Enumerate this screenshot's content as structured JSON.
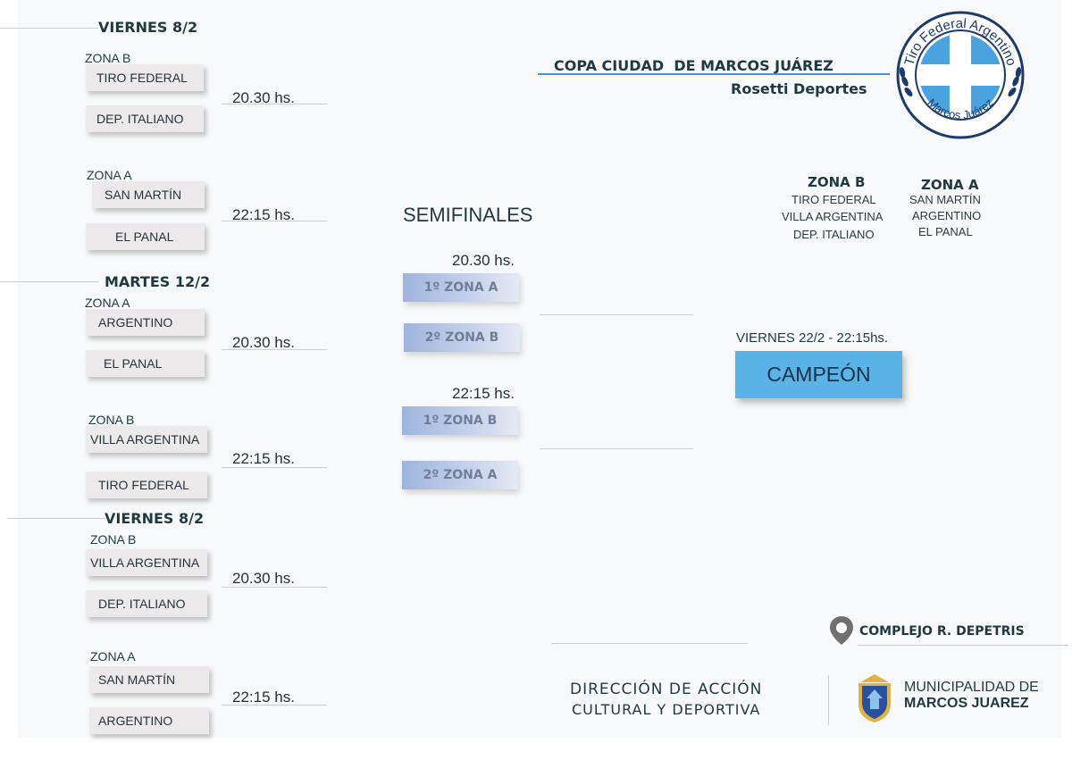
{
  "left_bracket": {
    "days": [
      "VIERNES 8/2",
      "MARTES 12/2",
      "VIERNES 8/2"
    ],
    "matches": [
      {
        "zone": "ZONA B",
        "team1": "TIRO FEDERAL",
        "team2": "DEP. ITALIANO",
        "time": "20.30 hs."
      },
      {
        "zone": "ZONA A",
        "team1": "SAN MARTÍN",
        "team2": "EL PANAL",
        "time": "22:15 hs."
      },
      {
        "zone": "ZONA A",
        "team1": "ARGENTINO",
        "team2": "EL PANAL",
        "time": "20.30 hs."
      },
      {
        "zone": "ZONA B",
        "team1": "VILLA ARGENTINA",
        "team2": "TIRO FEDERAL",
        "time": "22:15 hs."
      },
      {
        "zone": "ZONA B",
        "team1": "VILLA ARGENTINA",
        "team2": "DEP. ITALIANO",
        "time": "20.30 hs."
      },
      {
        "zone": "ZONA A",
        "team1": "SAN MARTÍN",
        "team2": "ARGENTINO",
        "time": "22:15 hs."
      }
    ]
  },
  "semifinals": {
    "title": "SEMIFINALES",
    "groups": [
      {
        "time": "20.30 hs.",
        "slot1": "1º ZONA A",
        "slot2": "2º ZONA B"
      },
      {
        "time": "22:15 hs.",
        "slot1": "1º ZONA B",
        "slot2": "2º ZONA A"
      }
    ]
  },
  "final": {
    "date": "VIERNES 22/2 - 22:15hs.",
    "label": "CAMPEÓN"
  },
  "header": {
    "title": "COPA CIUDAD  DE MARCOS JUÁREZ",
    "subtitle": "Rosetti Deportes"
  },
  "logo": {
    "top_text": "Tiro Federal Argentino",
    "bottom_text": "Marcos Juárez"
  },
  "zones": [
    {
      "name": "ZONA B",
      "teams": [
        "TIRO FEDERAL",
        "VILLA ARGENTINA",
        "DEP. ITALIANO"
      ]
    },
    {
      "name": "ZONA A",
      "teams": [
        "SAN MARTÍN",
        "ARGENTINO",
        "EL PANAL"
      ]
    }
  ],
  "venue": {
    "label": "COMPLEJO R. DEPETRIS"
  },
  "footer": {
    "direction_line1": "DIRECCIÓN DE ACCIÓN",
    "direction_line2": "CULTURAL Y DEPORTIVA",
    "muni_line1": "MUNICIPALIDAD DE",
    "muni_line2": "MARCOS JUAREZ"
  },
  "colors": {
    "accent_blue": "#4aa3df",
    "champion_bg": "#5ab3e6",
    "semi_blue": "#9fb4de",
    "text_dark": "#1e3a40"
  }
}
